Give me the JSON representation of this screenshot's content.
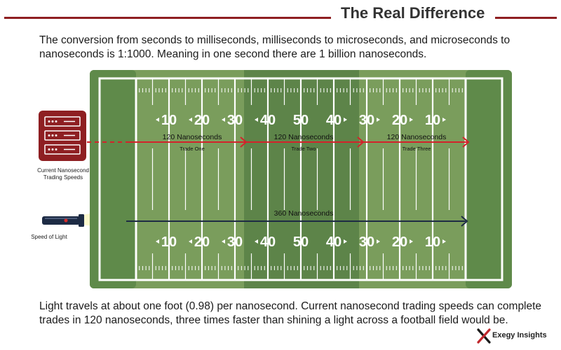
{
  "title": "The Real Difference",
  "intro": "The conversion from seconds to milliseconds, milliseconds to microseconds, and microseconds to nanoseconds is 1:1000. Meaning in one second there are 1 billion nanoseconds.",
  "field": {
    "yard_numbers": [
      "10",
      "20",
      "30",
      "40",
      "50",
      "40",
      "30",
      "20",
      "10"
    ],
    "trades": [
      {
        "time": "120 Nanoseconds",
        "label": "Trade One"
      },
      {
        "time": "120 Nanoseconds",
        "label": "Trade Two"
      },
      {
        "time": "120 Nanoseconds",
        "label": "Trade Three"
      }
    ],
    "light_time": "360 Nanoseconds"
  },
  "server_caption": [
    "Current Nanosecond",
    "Trading Speeds"
  ],
  "light_caption": "Speed of Light",
  "outro": "Light travels at about one foot (0.98) per nanosecond. Current nanosecond trading speeds can complete trades in 120 nanoseconds, three times faster than shining a light across a football field would be.",
  "brand": "Exegy Insights",
  "colors": {
    "accent": "#8e1f22",
    "field_light": "#7a9d5c",
    "field_dark": "#5d8449",
    "endzone": "#5f8a4a",
    "navy": "#1d2b44"
  }
}
